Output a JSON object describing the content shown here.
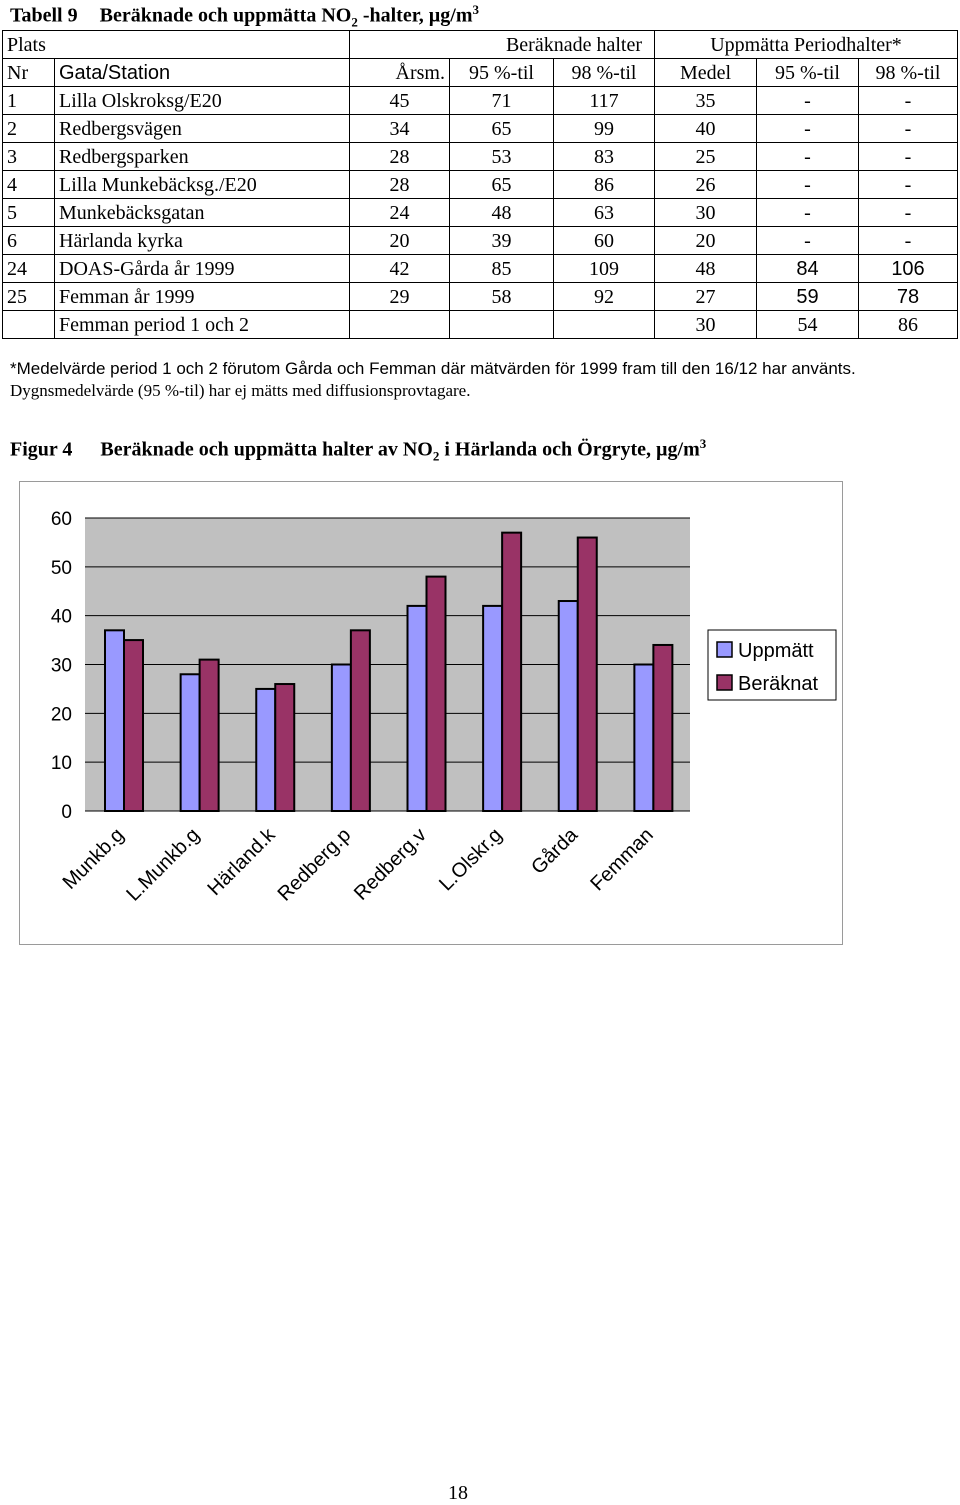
{
  "table": {
    "title_label": "Tabell 9",
    "title_text": "Beräknade och uppmätta NO",
    "title_sub": "2",
    "title_rest": " -halter, µg/m",
    "title_sup": "3",
    "header1": {
      "plats": "Plats",
      "beraknade": "Beräknade halter",
      "uppmatta": "Uppmätta Periodhalter*"
    },
    "header2": [
      "Nr",
      "Gata/Station",
      "Årsm.",
      "95 %-til",
      "98 %-til",
      "Medel",
      "95 %-til",
      "98 %-til"
    ],
    "rows": [
      [
        "1",
        "Lilla Olskroksg/E20",
        "45",
        "71",
        "117",
        "35",
        "-",
        "-"
      ],
      [
        "2",
        "Redbergsvägen",
        "34",
        "65",
        "99",
        "40",
        "-",
        "-"
      ],
      [
        "3",
        "Redbergsparken",
        "28",
        "53",
        "83",
        "25",
        "-",
        "-"
      ],
      [
        "4",
        "Lilla Munkebäcksg./E20",
        "28",
        "65",
        "86",
        "26",
        "-",
        "-"
      ],
      [
        "5",
        "Munkebäcksgatan",
        "24",
        "48",
        "63",
        "30",
        "-",
        "-"
      ],
      [
        "6",
        "Härlanda kyrka",
        "20",
        "39",
        "60",
        "20",
        "-",
        "-"
      ],
      [
        "24",
        "DOAS-Gårda år 1999",
        "42",
        "85",
        "109",
        "48",
        "84",
        "106"
      ],
      [
        "25",
        "Femman år 1999",
        "29",
        "58",
        "92",
        "27",
        "59",
        "78"
      ],
      [
        "",
        "Femman period 1 och 2",
        "",
        "",
        "",
        "30",
        "54",
        "86"
      ]
    ],
    "footnote_sans": "*Medelvärde period 1 och 2 förutom Gårda och Femman där mätvärden för 1999 fram till den 16/12 har använts.",
    "footnote_serif": " Dygnsmedelvärde (95 %-til) har ej mätts med diffusionsprovtagare."
  },
  "figure": {
    "label": "Figur 4",
    "title_text": "Beräknade och uppmätta halter av NO",
    "title_sub": "2",
    "title_rest": " i Härlanda och Örgryte, µg/m",
    "title_sup": "3"
  },
  "chart_data": {
    "type": "bar",
    "categories": [
      "Munkb.g",
      "L.Munkb.g",
      "Härland.k",
      "Redberg.p",
      "Redberg.v",
      "L.Olskr.g",
      "Gårda",
      "Femman"
    ],
    "series": [
      {
        "name": "Uppmätt",
        "values": [
          37,
          28,
          25,
          30,
          42,
          42,
          43,
          30
        ],
        "color": "#9999ff"
      },
      {
        "name": "Beräknat",
        "values": [
          35,
          31,
          26,
          37,
          48,
          57,
          56,
          34
        ],
        "color": "#993366"
      }
    ],
    "yticks": [
      "0",
      "10",
      "20",
      "30",
      "40",
      "50",
      "60"
    ],
    "ylim": [
      0,
      60
    ],
    "grid": true,
    "plot_background": "#c0c0c0",
    "legend_position": "right"
  },
  "page_number": "18"
}
